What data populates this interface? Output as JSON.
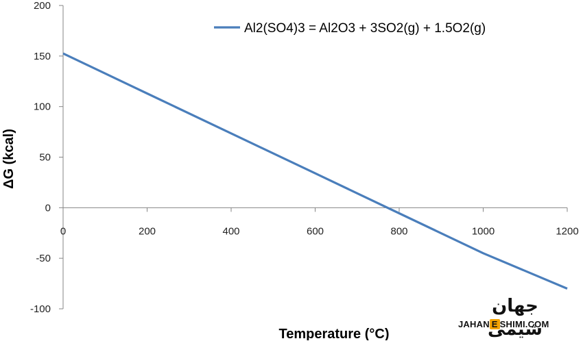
{
  "chart_data": {
    "type": "line",
    "title": "",
    "xlabel": "Temperature (°C)",
    "ylabel": "ΔG (kcal)",
    "xlim": [
      0,
      1200
    ],
    "ylim": [
      -100,
      200
    ],
    "xticks": [
      0,
      200,
      400,
      600,
      800,
      1000,
      1200
    ],
    "yticks": [
      -100,
      -50,
      0,
      50,
      100,
      150,
      200
    ],
    "grid": false,
    "legend_position": "top-right",
    "series": [
      {
        "name": "Al2(SO4)3 = Al2O3 + 3SO2(g) + 1.5O2(g)",
        "color": "#4a7ebb",
        "x": [
          0,
          200,
          400,
          600,
          800,
          1000,
          1200
        ],
        "y": [
          152.5,
          113,
          73.5,
          34,
          -5.5,
          -45,
          -80
        ]
      }
    ]
  },
  "watermark": {
    "text_fa": "جهان شیمی",
    "text_en_left": "JAHAN",
    "text_en_mid": "E",
    "text_en_right": "SHIMI.COM",
    "accent_color": "#f5a300"
  }
}
